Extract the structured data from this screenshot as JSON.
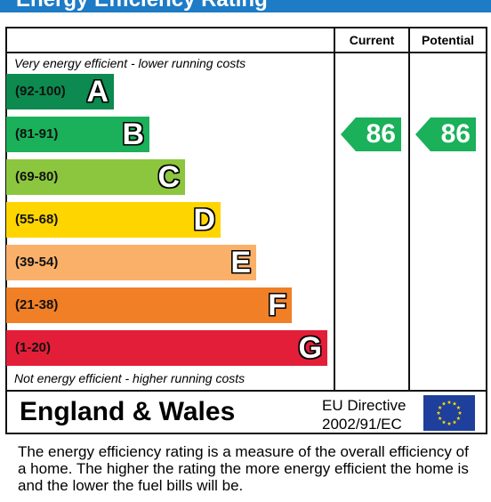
{
  "title": "Energy Efficiency Rating",
  "columns": {
    "current": "Current",
    "potential": "Potential"
  },
  "top_note": "Very energy efficient - lower running costs",
  "bottom_note": "Not energy efficient - higher running costs",
  "chart_data": {
    "type": "bar",
    "bands": [
      {
        "letter": "A",
        "range": "(92-100)",
        "color": "#0c8a4f"
      },
      {
        "letter": "B",
        "range": "(81-91)",
        "color": "#1bb05a"
      },
      {
        "letter": "C",
        "range": "(69-80)",
        "color": "#8cc63e"
      },
      {
        "letter": "D",
        "range": "(55-68)",
        "color": "#ffd500"
      },
      {
        "letter": "E",
        "range": "(39-54)",
        "color": "#fbb06a"
      },
      {
        "letter": "F",
        "range": "(21-38)",
        "color": "#f07f26"
      },
      {
        "letter": "G",
        "range": "(1-20)",
        "color": "#e31e38"
      }
    ],
    "current": {
      "value": "86",
      "band": "B"
    },
    "potential": {
      "value": "86",
      "band": "B"
    }
  },
  "region": "England & Wales",
  "directive": {
    "line1": "EU Directive",
    "line2": "2002/91/EC"
  },
  "footer_text": "The energy efficiency rating is a measure of the overall efficiency of a home.  The higher the rating the more energy efficient the home is and the lower the fuel bills will be."
}
